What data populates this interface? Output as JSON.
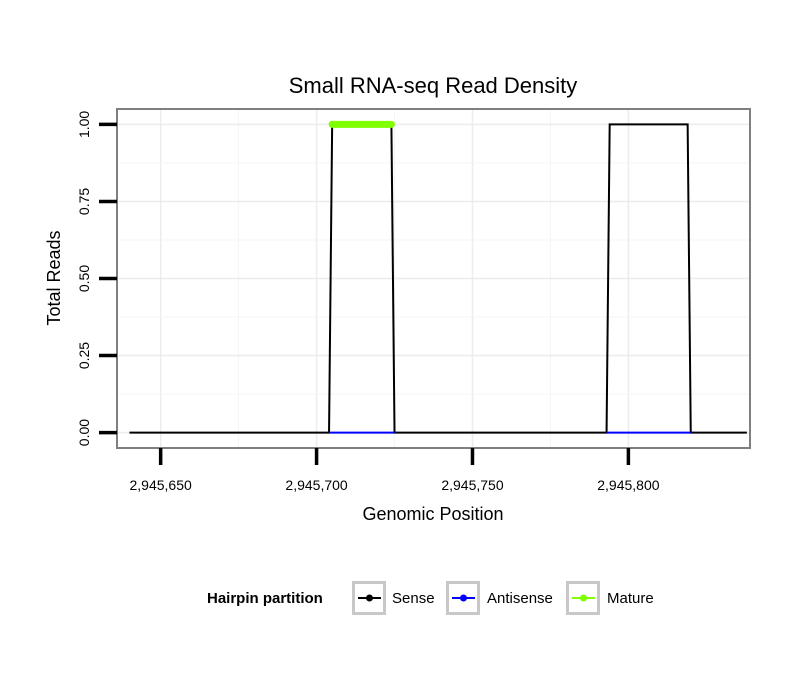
{
  "chart_data": {
    "type": "line",
    "title": "Small RNA-seq Read Density",
    "xlabel": "Genomic Position",
    "ylabel": "Total Reads",
    "xlim": [
      2945636,
      2945839
    ],
    "ylim": [
      -0.05,
      1.05
    ],
    "x_ticks": [
      2945650,
      2945700,
      2945750,
      2945800
    ],
    "x_tick_labels": [
      "2,945,650",
      "2,945,700",
      "2,945,750",
      "2,945,800"
    ],
    "y_ticks": [
      0,
      0.25,
      0.5,
      0.75,
      1
    ],
    "y_tick_labels": [
      "0.00",
      "0.25",
      "0.50",
      "0.75",
      "1.00"
    ],
    "grid": true,
    "legend": {
      "title": "Hairpin partition",
      "position": "bottom",
      "entries": [
        "Sense",
        "Antisense",
        "Mature"
      ]
    },
    "series": [
      {
        "name": "Sense",
        "color": "#000000",
        "x": [
          2945640,
          2945704,
          2945705,
          2945724,
          2945725,
          2945793,
          2945794,
          2945819,
          2945820,
          2945838
        ],
        "y": [
          0,
          0,
          1,
          1,
          0,
          0,
          1,
          1,
          0,
          0
        ]
      },
      {
        "name": "Antisense",
        "color": "#0000ff",
        "x": [
          2945704,
          2945725,
          2945793,
          2945820
        ],
        "y": [
          0,
          0,
          0,
          0
        ],
        "segments": [
          [
            0,
            1
          ],
          [
            2,
            3
          ]
        ]
      },
      {
        "name": "Mature",
        "color": "#7fff00",
        "x": [
          2945705,
          2945724
        ],
        "y": [
          1,
          1
        ]
      }
    ]
  }
}
